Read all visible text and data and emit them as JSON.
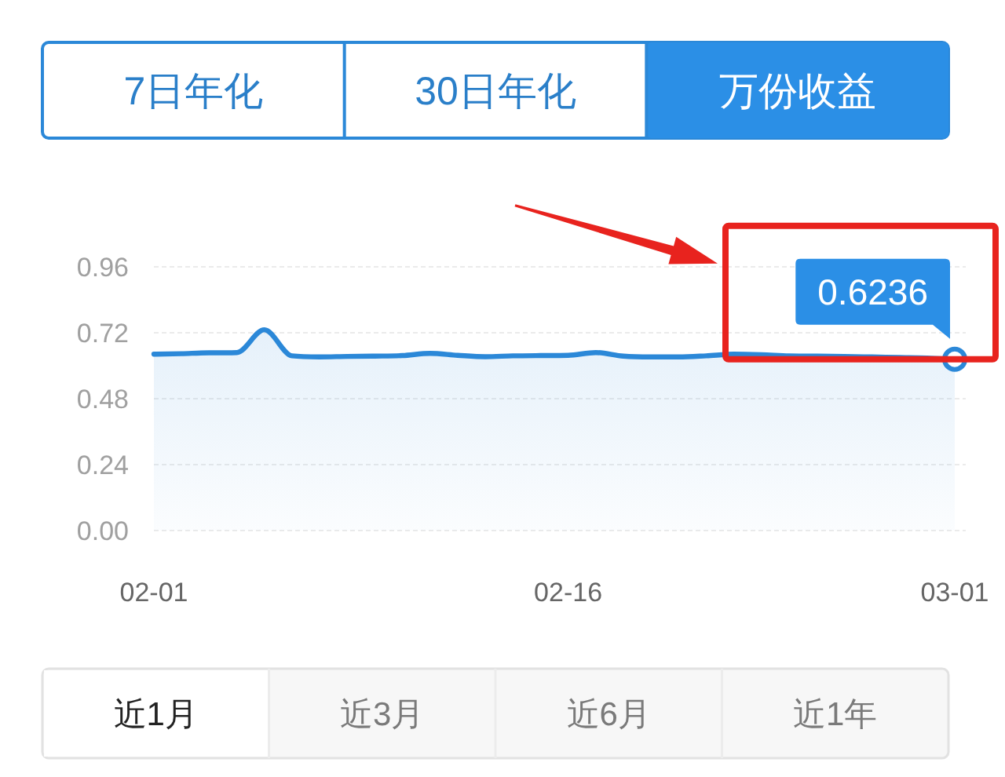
{
  "chart_data": [
    {
      "type": "other",
      "annotations": [
        "7日年化",
        "30日年化",
        "万份收益"
      ]
    },
    {
      "type": "area",
      "x": [
        "--02-01",
        "--02-02",
        "--02-03",
        "--02-04",
        "--02-05",
        "--02-06",
        "--02-07",
        "--02-08",
        "--02-09",
        "--02-10",
        "--02-11",
        "--02-12",
        "--02-13",
        "--02-14",
        "--02-15",
        "--02-16",
        "--02-17",
        "--02-18",
        "--02-19",
        "--02-20",
        "--02-21",
        "--02-22",
        "--02-23",
        "--02-24",
        "--02-25",
        "--02-26",
        "--02-27",
        "--02-28",
        "--02-29",
        "--03-01"
      ],
      "series": [
        {
          "color": "#2b88d8",
          "values": [
            0.642,
            0.644,
            0.647,
            0.648,
            0.731,
            0.636,
            0.632,
            0.634,
            0.635,
            0.637,
            0.645,
            0.638,
            0.633,
            0.636,
            0.637,
            0.638,
            0.648,
            0.635,
            0.632,
            0.632,
            0.636,
            0.642,
            0.64,
            0.636,
            0.635,
            0.634,
            0.632,
            0.63,
            0.628,
            0.6236
          ],
          "value_labels": [
            null,
            null,
            null,
            null,
            null,
            null,
            null,
            null,
            null,
            null,
            null,
            null,
            null,
            null,
            null,
            null,
            null,
            null,
            null,
            null,
            null,
            null,
            null,
            null,
            null,
            null,
            null,
            null,
            null,
            "0.6236"
          ]
        }
      ],
      "xlim": [
        "--02-01",
        "--03-01"
      ],
      "xticks": [
        {
          "value": "--02-01",
          "label": "02-01"
        },
        {
          "value": "--02-16",
          "label": "02-16"
        },
        {
          "value": "--03-01",
          "label": "03-01"
        }
      ],
      "ylim": [
        0,
        0.96
      ],
      "yticks": [
        {
          "value": 0,
          "label": "0.00"
        },
        0.24,
        0.48,
        0.72,
        0.96
      ],
      "grid": "y"
    },
    {
      "type": "other",
      "annotations": [
        "近1月",
        "近3月",
        "近6月",
        "近1年"
      ]
    }
  ]
}
